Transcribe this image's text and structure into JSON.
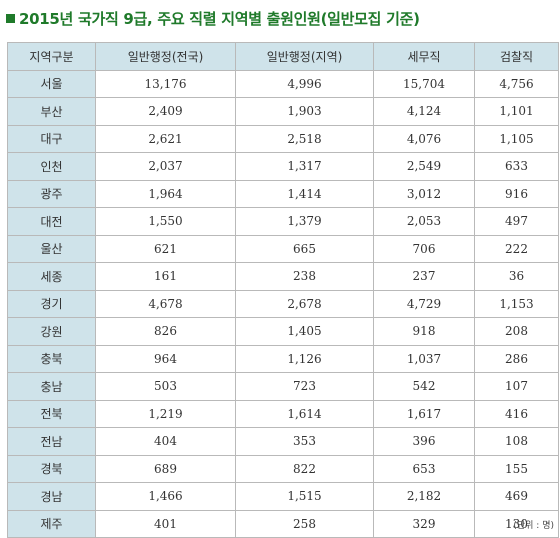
{
  "title": "2015년 국가직 9급, 주요 직렬 지역별 출원인원(일반모집 기준)",
  "headers": [
    "지역구분",
    "일반행정(전국)",
    "일반행정(지역)",
    "세무직",
    "검찰직"
  ],
  "rows": [
    {
      "region": "서울",
      "values": [
        "13,176",
        "4,996",
        "15,704",
        "4,756"
      ]
    },
    {
      "region": "부산",
      "values": [
        "2,409",
        "1,903",
        "4,124",
        "1,101"
      ]
    },
    {
      "region": "대구",
      "values": [
        "2,621",
        "2,518",
        "4,076",
        "1,105"
      ]
    },
    {
      "region": "인천",
      "values": [
        "2,037",
        "1,317",
        "2,549",
        "633"
      ]
    },
    {
      "region": "광주",
      "values": [
        "1,964",
        "1,414",
        "3,012",
        "916"
      ]
    },
    {
      "region": "대전",
      "values": [
        "1,550",
        "1,379",
        "2,053",
        "497"
      ]
    },
    {
      "region": "울산",
      "values": [
        "621",
        "665",
        "706",
        "222"
      ]
    },
    {
      "region": "세종",
      "values": [
        "161",
        "238",
        "237",
        "36"
      ]
    },
    {
      "region": "경기",
      "values": [
        "4,678",
        "2,678",
        "4,729",
        "1,153"
      ]
    },
    {
      "region": "강원",
      "values": [
        "826",
        "1,405",
        "918",
        "208"
      ]
    },
    {
      "region": "충북",
      "values": [
        "964",
        "1,126",
        "1,037",
        "286"
      ]
    },
    {
      "region": "충남",
      "values": [
        "503",
        "723",
        "542",
        "107"
      ]
    },
    {
      "region": "전북",
      "values": [
        "1,219",
        "1,614",
        "1,617",
        "416"
      ]
    },
    {
      "region": "전남",
      "values": [
        "404",
        "353",
        "396",
        "108"
      ]
    },
    {
      "region": "경북",
      "values": [
        "689",
        "822",
        "653",
        "155"
      ]
    },
    {
      "region": "경남",
      "values": [
        "1,466",
        "1,515",
        "2,182",
        "469"
      ]
    },
    {
      "region": "제주",
      "values": [
        "401",
        "258",
        "329",
        "130"
      ]
    }
  ],
  "unit": "(단위 : 명)",
  "colors": {
    "title": "#1f7a2a",
    "header_bg": "#cfe3ea",
    "border": "#b9b9b9"
  }
}
